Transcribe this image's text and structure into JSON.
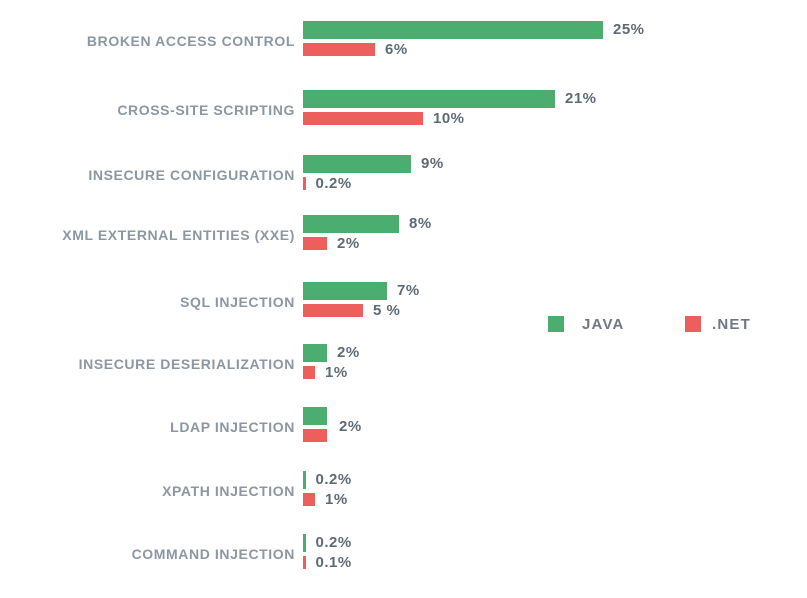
{
  "chart_data": {
    "type": "bar",
    "orientation": "horizontal",
    "title": "",
    "categories": [
      "BROKEN ACCESS CONTROL",
      "CROSS-SITE SCRIPTING",
      "INSECURE CONFIGURATION",
      "XML EXTERNAL ENTITIES (XXE)",
      "SQL INJECTION",
      "INSECURE DESERIALIZATION",
      "LDAP INJECTION",
      "XPATH INJECTION",
      "COMMAND INJECTION"
    ],
    "series": [
      {
        "name": "JAVA",
        "color": "#4BAE70",
        "values": [
          25,
          21,
          9,
          8,
          7,
          2,
          2,
          0.2,
          0.2
        ],
        "labels": [
          "25%",
          "21%",
          "9%",
          "8%",
          "7%",
          "2%",
          "",
          "0.2%",
          "0.2%"
        ]
      },
      {
        "name": ".NET",
        "color": "#ED5F5D",
        "values": [
          6,
          10,
          0.2,
          2,
          5,
          1,
          2,
          1,
          0.1
        ],
        "labels": [
          "6%",
          "10%",
          "0.2%",
          "2%",
          "5 %",
          "1%",
          "",
          "1%",
          "0.1%"
        ]
      }
    ],
    "shared_labels": [
      "",
      "",
      "",
      "",
      "",
      "",
      "2%",
      "",
      ""
    ],
    "legend": {
      "position": "right-middle",
      "entries": [
        "JAVA",
        ".NET"
      ]
    },
    "axis": {
      "x_min": 0,
      "x_max": 25,
      "unit": "%",
      "gridlines": false,
      "axis_labels_visible": false
    },
    "text_colors": {
      "category_label": "#8C97A4",
      "value_label": "#5E6B77",
      "legend_label": "#6E7987"
    }
  }
}
